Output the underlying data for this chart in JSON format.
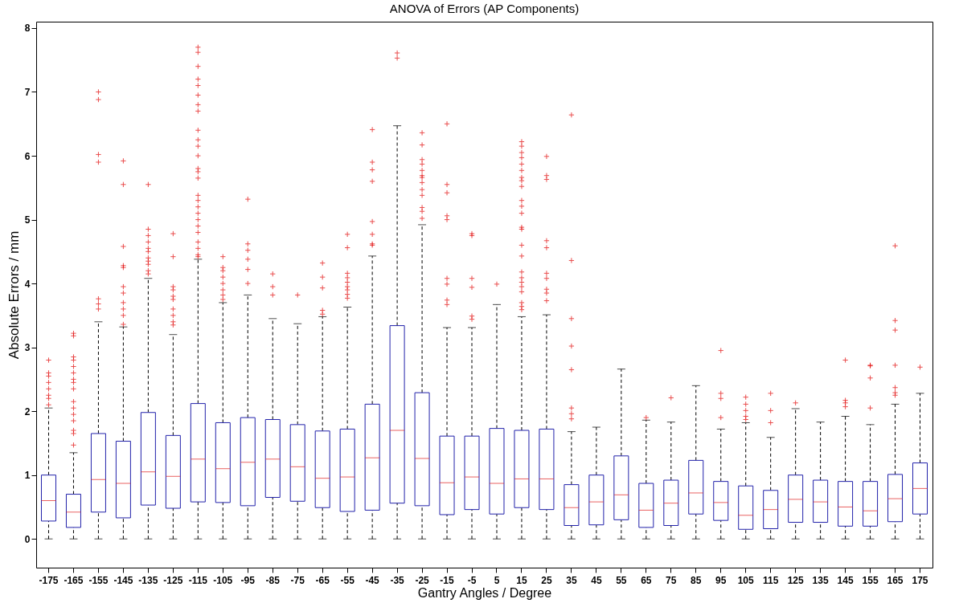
{
  "chart_data": {
    "type": "box",
    "title": "ANOVA of Errors (AP Components)",
    "xlabel": "Gantry Angles / Degree",
    "ylabel": "Absolute Errors / mm",
    "categories": [
      "-175",
      "-165",
      "-155",
      "-145",
      "-135",
      "-125",
      "-115",
      "-105",
      "-95",
      "-85",
      "-75",
      "-65",
      "-55",
      "-45",
      "-35",
      "-25",
      "-15",
      "-5",
      "5",
      "15",
      "25",
      "35",
      "45",
      "55",
      "65",
      "75",
      "85",
      "95",
      "105",
      "115",
      "125",
      "135",
      "145",
      "155",
      "165",
      "175"
    ],
    "ylim": [
      -0.45,
      8.1
    ],
    "yticks": [
      0,
      1,
      2,
      3,
      4,
      5,
      6,
      7,
      8
    ],
    "grid": false,
    "marker": "cross",
    "line_style": "dashed",
    "series": [
      {
        "color": "#2222aa",
        "boxes": [
          {
            "low": 0,
            "q1": 0.28,
            "median": 0.6,
            "q3": 1.0,
            "high": 2.05,
            "outliers": [
              2.1,
              2.2,
              2.25,
              2.35,
              2.45,
              2.55,
              2.6,
              2.8
            ]
          },
          {
            "low": 0,
            "q1": 0.18,
            "median": 0.42,
            "q3": 0.7,
            "high": 1.35,
            "outliers": [
              1.47,
              1.65,
              1.7,
              1.85,
              1.95,
              2.05,
              2.15,
              2.35,
              2.45,
              2.5,
              2.6,
              2.7,
              2.8,
              2.85,
              3.18,
              3.22
            ]
          },
          {
            "low": 0,
            "q1": 0.42,
            "median": 0.93,
            "q3": 1.65,
            "high": 3.4,
            "outliers": [
              3.6,
              3.68,
              3.76,
              5.9,
              6.02,
              6.88,
              7.0
            ]
          },
          {
            "low": 0,
            "q1": 0.33,
            "median": 0.87,
            "q3": 1.53,
            "high": 3.32,
            "outliers": [
              3.36,
              3.5,
              3.6,
              3.7,
              3.85,
              3.95,
              4.25,
              4.28,
              4.58,
              5.55,
              5.92
            ]
          },
          {
            "low": 0,
            "q1": 0.53,
            "median": 1.05,
            "q3": 1.98,
            "high": 4.08,
            "outliers": [
              4.15,
              4.2,
              4.3,
              4.35,
              4.4,
              4.5,
              4.55,
              4.65,
              4.75,
              4.85,
              5.55
            ]
          },
          {
            "low": 0,
            "q1": 0.48,
            "median": 0.98,
            "q3": 1.62,
            "high": 3.2,
            "outliers": [
              3.35,
              3.4,
              3.5,
              3.6,
              3.75,
              3.8,
              3.9,
              3.95,
              4.42,
              4.78
            ]
          },
          {
            "low": 0,
            "q1": 0.58,
            "median": 1.25,
            "q3": 2.12,
            "high": 4.38,
            "outliers": [
              4.42,
              4.45,
              4.55,
              4.65,
              4.8,
              4.9,
              5.0,
              5.1,
              5.2,
              5.3,
              5.38,
              5.65,
              5.75,
              5.8,
              6.0,
              6.15,
              6.25,
              6.4,
              6.7,
              6.8,
              6.95,
              7.1,
              7.2,
              7.4,
              7.62,
              7.7
            ]
          },
          {
            "low": 0,
            "q1": 0.57,
            "median": 1.1,
            "q3": 1.82,
            "high": 3.7,
            "outliers": [
              3.75,
              3.82,
              3.9,
              4.0,
              4.1,
              4.2,
              4.25,
              4.42
            ]
          },
          {
            "low": 0,
            "q1": 0.52,
            "median": 1.2,
            "q3": 1.9,
            "high": 3.82,
            "outliers": [
              4.0,
              4.22,
              4.38,
              4.52,
              4.62,
              5.32
            ]
          },
          {
            "low": 0,
            "q1": 0.65,
            "median": 1.25,
            "q3": 1.87,
            "high": 3.45,
            "outliers": [
              3.82,
              3.95,
              4.15
            ]
          },
          {
            "low": 0,
            "q1": 0.59,
            "median": 1.13,
            "q3": 1.79,
            "high": 3.37,
            "outliers": [
              3.82
            ]
          },
          {
            "low": 0,
            "q1": 0.49,
            "median": 0.95,
            "q3": 1.69,
            "high": 3.48,
            "outliers": [
              3.52,
              3.58,
              3.93,
              4.1,
              4.32
            ]
          },
          {
            "low": 0,
            "q1": 0.43,
            "median": 0.97,
            "q3": 1.72,
            "high": 3.63,
            "outliers": [
              3.77,
              3.83,
              3.9,
              3.95,
              4.02,
              4.09,
              4.16,
              4.56,
              4.77
            ]
          },
          {
            "low": 0,
            "q1": 0.45,
            "median": 1.27,
            "q3": 2.11,
            "high": 4.43,
            "outliers": [
              4.6,
              4.62,
              4.77,
              4.97,
              5.6,
              5.78,
              5.9,
              6.41
            ]
          },
          {
            "low": 0,
            "q1": 0.56,
            "median": 1.7,
            "q3": 3.34,
            "high": 6.47,
            "outliers": [
              7.53,
              7.61
            ]
          },
          {
            "low": 0,
            "q1": 0.52,
            "median": 1.26,
            "q3": 2.29,
            "high": 4.92,
            "outliers": [
              5.02,
              5.13,
              5.19,
              5.38,
              5.47,
              5.58,
              5.66,
              5.69,
              5.77,
              5.87,
              5.94,
              6.17,
              6.36
            ]
          },
          {
            "low": 0,
            "q1": 0.38,
            "median": 0.88,
            "q3": 1.61,
            "high": 3.31,
            "outliers": [
              3.67,
              3.74,
              3.99,
              4.08,
              5.0,
              5.06,
              5.42,
              5.55,
              6.5
            ]
          },
          {
            "low": 0,
            "q1": 0.46,
            "median": 0.97,
            "q3": 1.61,
            "high": 3.31,
            "outliers": [
              3.44,
              3.49,
              3.94,
              4.08,
              4.75,
              4.78
            ]
          },
          {
            "low": 0,
            "q1": 0.39,
            "median": 0.87,
            "q3": 1.73,
            "high": 3.67,
            "outliers": [
              3.99
            ]
          },
          {
            "low": 0,
            "q1": 0.49,
            "median": 0.94,
            "q3": 1.7,
            "high": 3.48,
            "outliers": [
              3.59,
              3.64,
              3.7,
              3.87,
              3.95,
              4.02,
              4.09,
              4.18,
              4.43,
              4.6,
              4.85,
              4.88,
              5.1,
              5.21,
              5.3,
              5.52,
              5.61,
              5.66,
              5.77,
              5.87,
              5.97,
              6.05,
              6.15,
              6.22
            ]
          },
          {
            "low": 0,
            "q1": 0.46,
            "median": 0.94,
            "q3": 1.72,
            "high": 3.51,
            "outliers": [
              3.73,
              3.85,
              3.91,
              4.08,
              4.16,
              4.56,
              4.67,
              5.63,
              5.69,
              5.99
            ]
          },
          {
            "low": 0,
            "q1": 0.21,
            "median": 0.49,
            "q3": 0.85,
            "high": 1.68,
            "outliers": [
              1.88,
              1.96,
              2.05,
              2.65,
              3.02,
              3.45,
              4.36,
              6.64
            ]
          },
          {
            "low": 0,
            "q1": 0.22,
            "median": 0.58,
            "q3": 1.0,
            "high": 1.75
          },
          {
            "low": 0,
            "q1": 0.3,
            "median": 0.69,
            "q3": 1.3,
            "high": 2.66
          },
          {
            "low": 0,
            "q1": 0.18,
            "median": 0.45,
            "q3": 0.87,
            "high": 1.86,
            "outliers": [
              1.9
            ]
          },
          {
            "low": 0,
            "q1": 0.21,
            "median": 0.56,
            "q3": 0.92,
            "high": 1.83,
            "outliers": [
              2.21
            ]
          },
          {
            "low": 0,
            "q1": 0.39,
            "median": 0.72,
            "q3": 1.23,
            "high": 2.4
          },
          {
            "low": 0,
            "q1": 0.29,
            "median": 0.57,
            "q3": 0.9,
            "high": 1.72,
            "outliers": [
              1.9,
              2.2,
              2.28,
              2.95
            ]
          },
          {
            "low": 0,
            "q1": 0.15,
            "median": 0.37,
            "q3": 0.83,
            "high": 1.82,
            "outliers": [
              1.87,
              1.92,
              2.01,
              2.11,
              2.22
            ]
          },
          {
            "low": 0,
            "q1": 0.16,
            "median": 0.46,
            "q3": 0.76,
            "high": 1.59,
            "outliers": [
              1.82,
              2.01,
              2.28
            ]
          },
          {
            "low": 0,
            "q1": 0.26,
            "median": 0.62,
            "q3": 1.0,
            "high": 2.04,
            "outliers": [
              2.13
            ]
          },
          {
            "low": 0,
            "q1": 0.26,
            "median": 0.58,
            "q3": 0.92,
            "high": 1.83
          },
          {
            "low": 0,
            "q1": 0.2,
            "median": 0.5,
            "q3": 0.9,
            "high": 1.92,
            "outliers": [
              2.07,
              2.13,
              2.17,
              2.8
            ]
          },
          {
            "low": 0,
            "q1": 0.2,
            "median": 0.44,
            "q3": 0.9,
            "high": 1.79,
            "outliers": [
              2.05,
              2.52,
              2.71,
              2.72
            ]
          },
          {
            "low": 0,
            "q1": 0.27,
            "median": 0.63,
            "q3": 1.01,
            "high": 2.11,
            "outliers": [
              2.25,
              2.29,
              2.37,
              2.72,
              3.27,
              3.42,
              4.59
            ]
          },
          {
            "low": 0,
            "q1": 0.39,
            "median": 0.79,
            "q3": 1.19,
            "high": 2.28,
            "outliers": [
              2.69
            ]
          }
        ]
      }
    ]
  }
}
